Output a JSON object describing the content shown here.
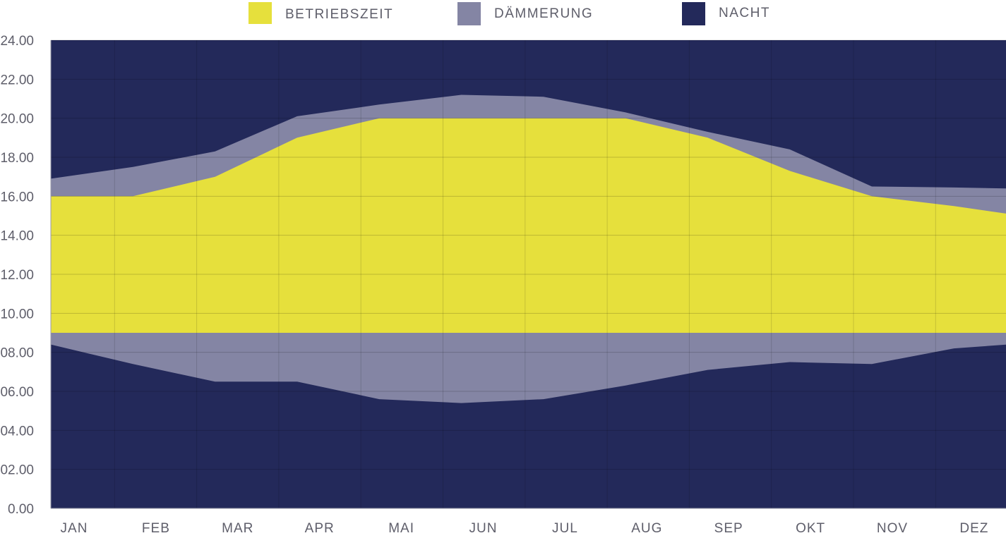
{
  "chart_data": {
    "type": "area",
    "categories": [
      "JAN",
      "FEB",
      "MAR",
      "APR",
      "MAI",
      "JUN",
      "JUL",
      "AUG",
      "SEP",
      "OKT",
      "NOV",
      "DEZ"
    ],
    "x_hours": [
      0,
      1,
      2,
      3,
      4,
      5,
      6,
      7,
      8,
      9,
      10,
      11,
      11.65
    ],
    "yticks": [
      "0.00",
      "02.00",
      "04.00",
      "06.00",
      "08.00",
      "10.00",
      "12.00",
      "14.00",
      "16.00",
      "18.00",
      "20.00",
      "22.00",
      "24.00"
    ],
    "ylim": [
      0,
      24
    ],
    "grid": true,
    "legend_position": "top",
    "series": [
      {
        "name": "BETRIEBSZEIT",
        "color": "#e6e03c",
        "lower": [
          9,
          9,
          9,
          9,
          9,
          9,
          9,
          9,
          9,
          9,
          9,
          9,
          9
        ],
        "upper": [
          16,
          16,
          17,
          19,
          20,
          20,
          20,
          20,
          19,
          17.3,
          16,
          15.5,
          15.1
        ]
      },
      {
        "name": "DÄMMERUNG",
        "color": "#8485a4",
        "morning_start": [
          8.4,
          7.4,
          6.5,
          6.5,
          5.6,
          5.4,
          5.6,
          6.3,
          7.1,
          7.5,
          7.4,
          8.2,
          8.4
        ],
        "evening_end": [
          16.9,
          17.5,
          18.3,
          20.1,
          20.7,
          21.2,
          21.1,
          20.3,
          19.3,
          18.4,
          16.5,
          16.45,
          16.4
        ]
      },
      {
        "name": "NACHT",
        "color": "#23295a"
      }
    ]
  }
}
